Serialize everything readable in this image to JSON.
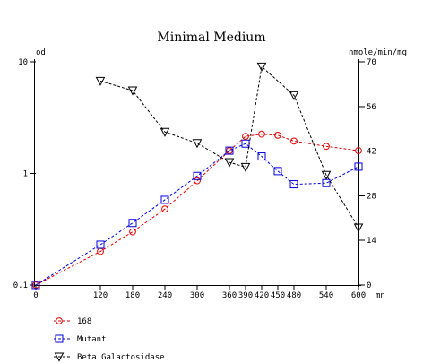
{
  "chart_data": {
    "type": "line",
    "title": "Minimal Medium",
    "ylabel": "od",
    "y2label": "nmole/min/mg",
    "xunit": "mn",
    "x_ticks": [
      0,
      120,
      180,
      240,
      300,
      360,
      390,
      420,
      450,
      480,
      540,
      600
    ],
    "y_ticks": [
      0.1,
      1,
      10
    ],
    "y_tick_labels": [
      "0.1",
      "1",
      "10"
    ],
    "y_scale": "log",
    "ylim": [
      0.1,
      10
    ],
    "y2_ticks": [
      0,
      14,
      28,
      42,
      56,
      70
    ],
    "y2lim": [
      0,
      70
    ],
    "xlim": [
      0,
      600
    ],
    "grid": false,
    "legend_position": "bottom-left",
    "series": [
      {
        "name": "168",
        "axis": "left",
        "marker": "circle",
        "color": "#e00000",
        "x": [
          0,
          120,
          180,
          240,
          300,
          360,
          390,
          420,
          450,
          480,
          540,
          600
        ],
        "y": [
          0.1,
          0.2,
          0.3,
          0.48,
          0.86,
          1.6,
          2.15,
          2.25,
          2.2,
          1.95,
          1.75,
          1.6
        ]
      },
      {
        "name": "Mutant",
        "axis": "left",
        "marker": "square",
        "color": "#0000e0",
        "x": [
          0,
          120,
          180,
          240,
          300,
          360,
          390,
          420,
          450,
          480,
          540,
          600
        ],
        "y": [
          0.1,
          0.23,
          0.36,
          0.58,
          0.95,
          1.6,
          1.85,
          1.42,
          1.05,
          0.8,
          0.82,
          1.15
        ]
      },
      {
        "name": "Beta Galactosidase",
        "axis": "right",
        "marker": "triangle-down",
        "color": "#000000",
        "x": [
          120,
          180,
          240,
          300,
          360,
          390,
          420,
          480,
          540,
          600
        ],
        "y": [
          64,
          61,
          48,
          44.5,
          38.5,
          37,
          68.5,
          59.5,
          34.5,
          18
        ]
      }
    ]
  }
}
